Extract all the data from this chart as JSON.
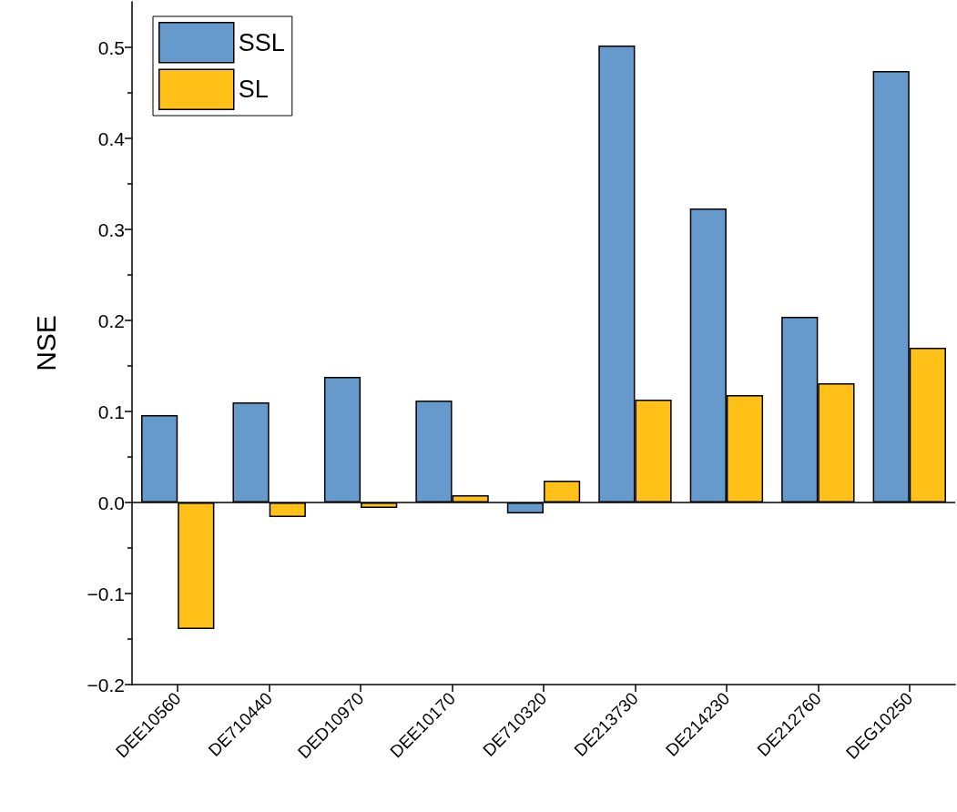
{
  "chart_data": {
    "type": "bar",
    "categories": [
      "DEE10560",
      "DE710440",
      "DED10970",
      "DEE10170",
      "DE710320",
      "DE213730",
      "DE214230",
      "DE212760",
      "DEG10250"
    ],
    "series": [
      {
        "name": "SSL",
        "color": "#6699cc",
        "values": [
          0.096,
          0.11,
          0.138,
          0.112,
          -0.012,
          0.502,
          0.323,
          0.204,
          0.474
        ]
      },
      {
        "name": "SL",
        "color": "#ffc118",
        "values": [
          -0.139,
          -0.016,
          -0.006,
          0.008,
          0.024,
          0.113,
          0.118,
          0.131,
          0.17
        ]
      }
    ],
    "ylabel": "NSE",
    "ylim": [
      -0.2,
      0.55
    ],
    "yticks": [
      -0.2,
      -0.1,
      {
        "value": 0,
        "label": "0.0"
      },
      0.1,
      0.2,
      0.3,
      0.4,
      0.5
    ],
    "ref_lines": [
      {
        "axis": "y",
        "value": 0,
        "color": "#000000"
      }
    ],
    "grid": false,
    "legend": "top left"
  }
}
